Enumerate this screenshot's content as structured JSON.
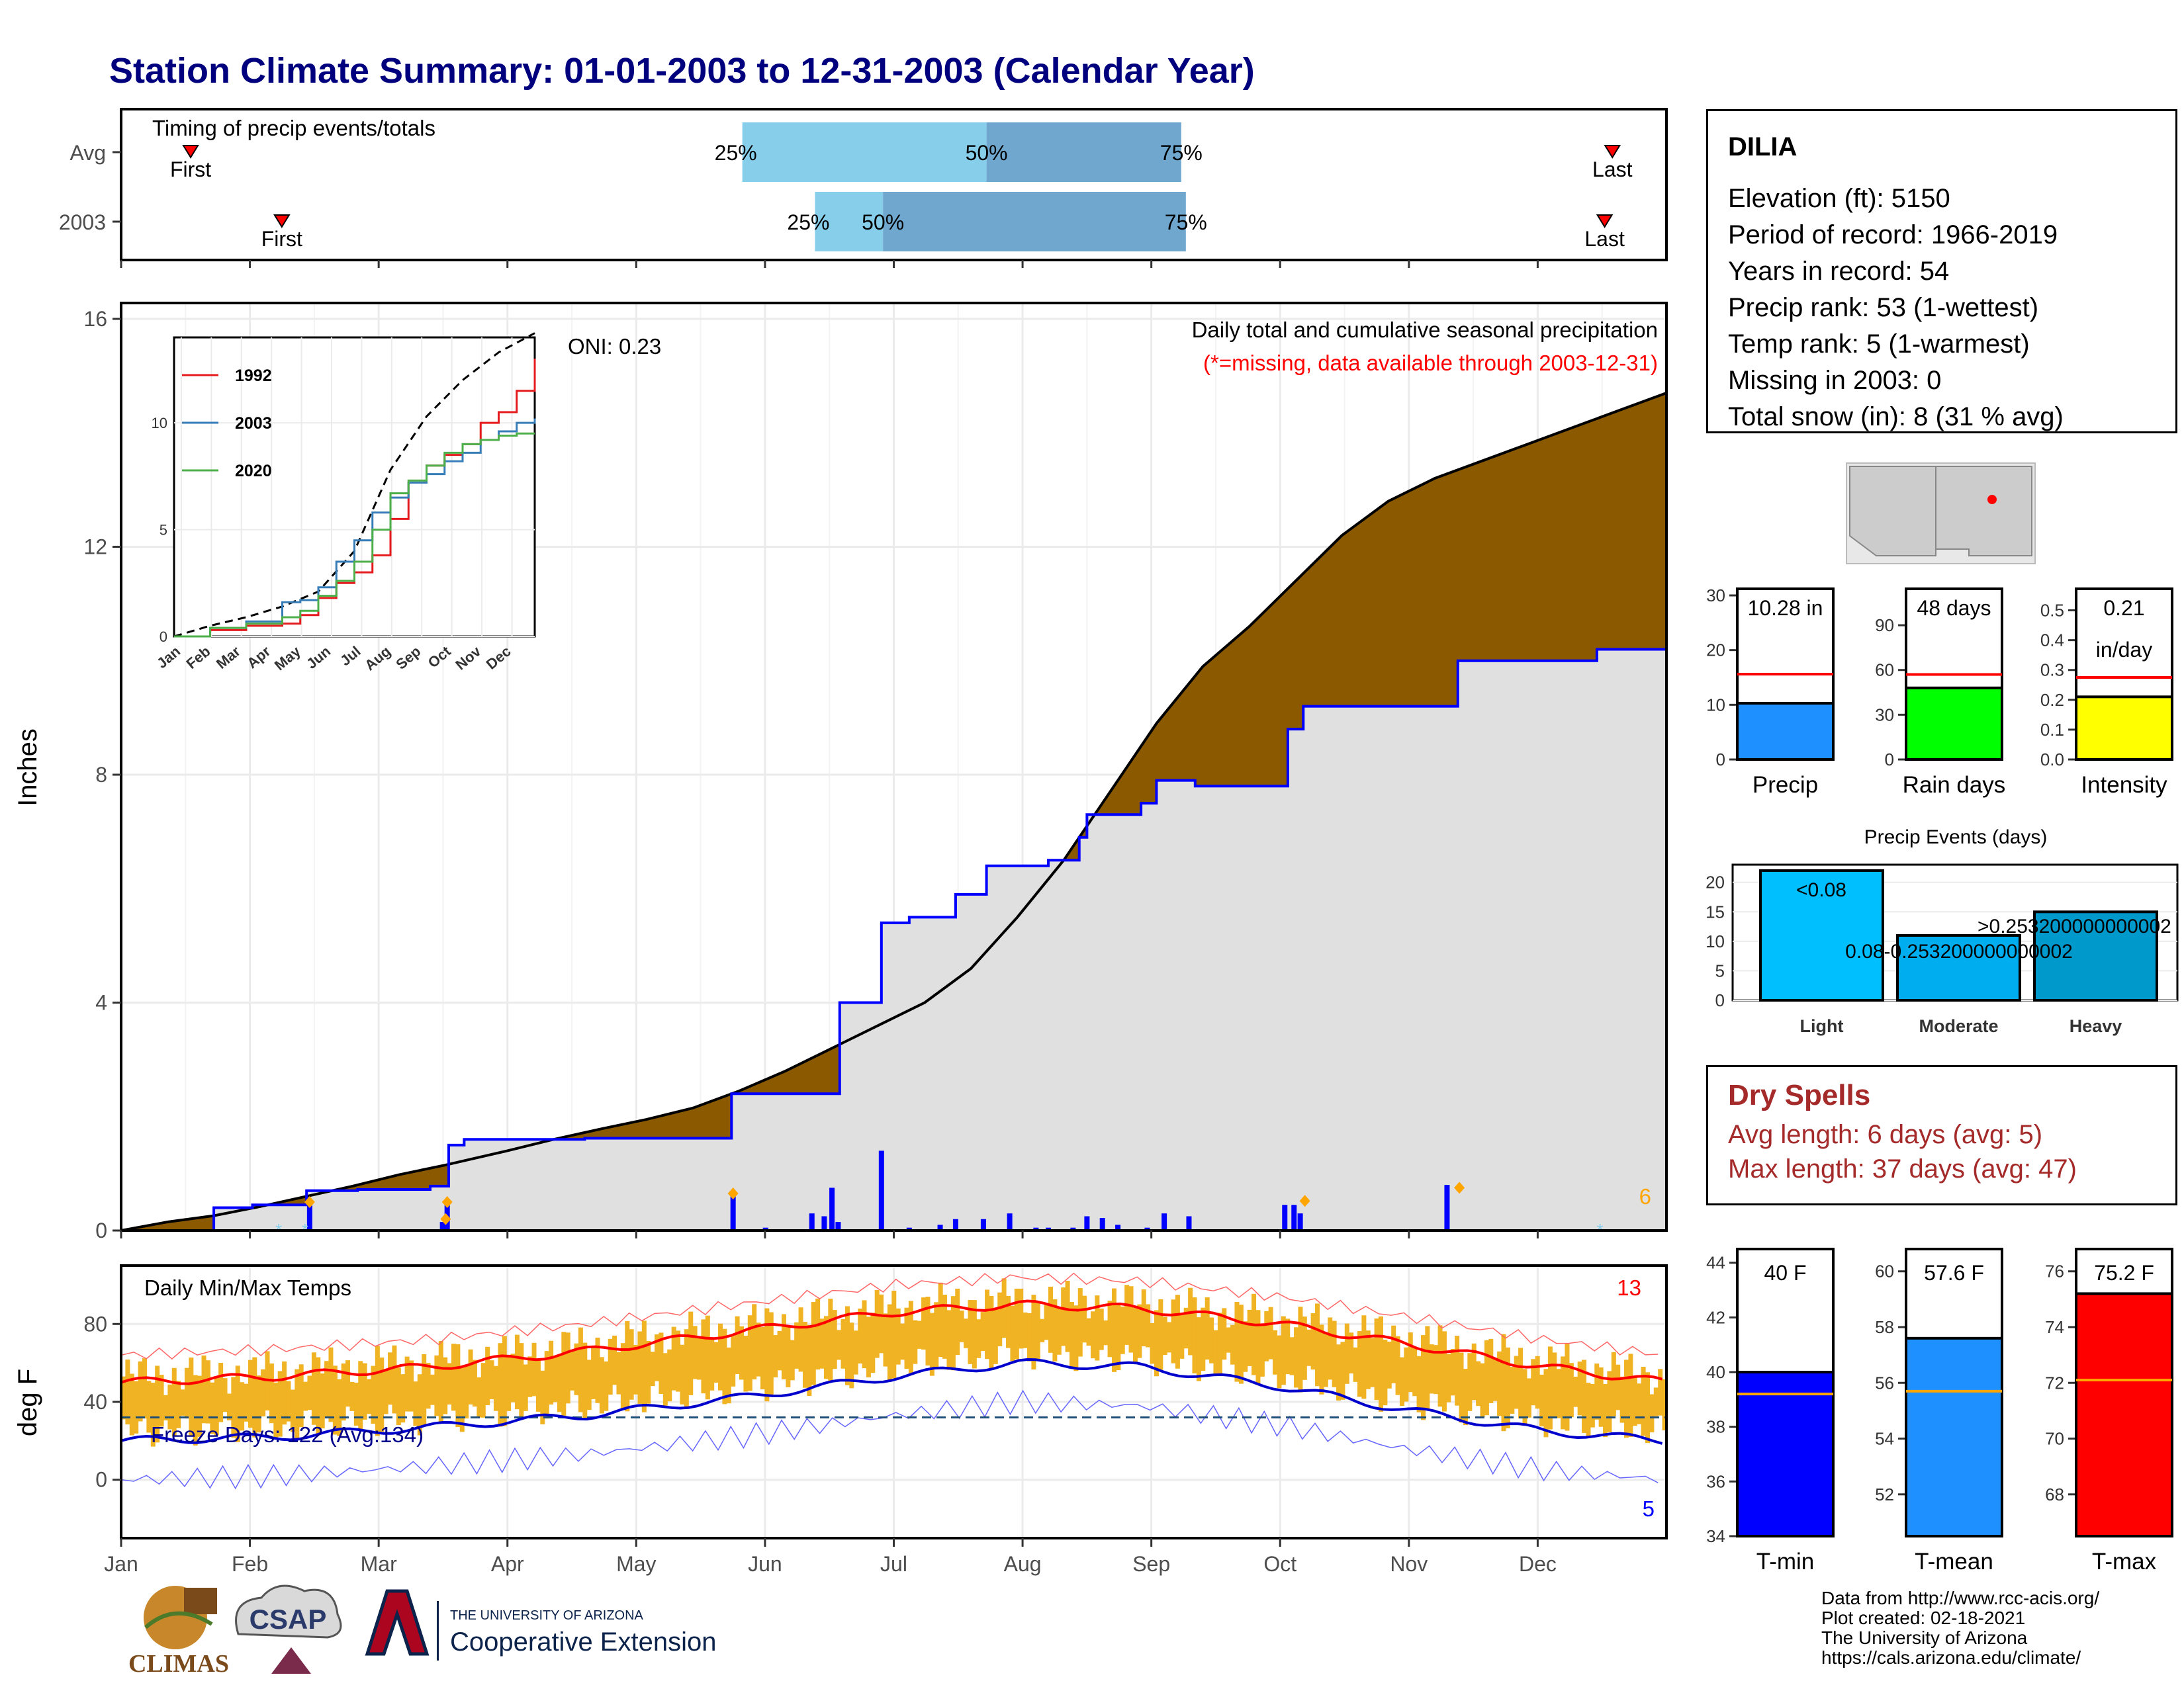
{
  "title": "Station Climate Summary: 01-01-2003 to 12-31-2003 (Calendar Year)",
  "timing": {
    "label": "Timing of precip events/totals",
    "rows": [
      {
        "name": "Avg",
        "first": 0.045,
        "last": 0.965,
        "p25": 0.402,
        "p50": 0.56,
        "p75": 0.686
      },
      {
        "name": "2003",
        "first": 0.104,
        "last": 0.96,
        "p25": 0.449,
        "p50": 0.493,
        "p75": 0.689
      }
    ],
    "first_label": "First",
    "last_label": "Last",
    "p25_label": "25%",
    "p50_label": "50%",
    "p75_label": "75%"
  },
  "precip_panel": {
    "ylabel": "Inches",
    "yticks": [
      "0",
      "4",
      "8",
      "12",
      "16"
    ],
    "ylim": [
      0,
      16
    ],
    "caption": "Daily total and cumulative seasonal precipitation",
    "caption2": "(*=missing, data available through 2003-12-31)",
    "oni": "ONI: 0.23",
    "corner_count": "6",
    "avg_cumulative": [
      [
        0,
        0
      ],
      [
        0.03,
        0.15
      ],
      [
        0.06,
        0.26
      ],
      [
        0.09,
        0.42
      ],
      [
        0.12,
        0.6
      ],
      [
        0.15,
        0.78
      ],
      [
        0.18,
        0.98
      ],
      [
        0.21,
        1.15
      ],
      [
        0.25,
        1.4
      ],
      [
        0.28,
        1.6
      ],
      [
        0.31,
        1.78
      ],
      [
        0.34,
        1.95
      ],
      [
        0.37,
        2.15
      ],
      [
        0.4,
        2.45
      ],
      [
        0.43,
        2.8
      ],
      [
        0.46,
        3.2
      ],
      [
        0.49,
        3.6
      ],
      [
        0.52,
        4.0
      ],
      [
        0.55,
        4.6
      ],
      [
        0.58,
        5.5
      ],
      [
        0.61,
        6.5
      ],
      [
        0.64,
        7.7
      ],
      [
        0.67,
        8.9
      ],
      [
        0.7,
        9.9
      ],
      [
        0.73,
        10.6
      ],
      [
        0.76,
        11.4
      ],
      [
        0.79,
        12.2
      ],
      [
        0.82,
        12.8
      ],
      [
        0.85,
        13.2
      ],
      [
        0.88,
        13.5
      ],
      [
        0.91,
        13.8
      ],
      [
        0.94,
        14.1
      ],
      [
        0.97,
        14.4
      ],
      [
        1.0,
        14.7
      ]
    ],
    "obs_cumulative": [
      [
        0,
        0
      ],
      [
        0.06,
        0.4
      ],
      [
        0.085,
        0.45
      ],
      [
        0.12,
        0.7
      ],
      [
        0.153,
        0.72
      ],
      [
        0.2,
        0.78
      ],
      [
        0.212,
        1.5
      ],
      [
        0.222,
        1.6
      ],
      [
        0.27,
        1.6
      ],
      [
        0.3,
        1.62
      ],
      [
        0.39,
        1.62
      ],
      [
        0.395,
        2.4
      ],
      [
        0.405,
        2.4
      ],
      [
        0.46,
        2.4
      ],
      [
        0.465,
        4.0
      ],
      [
        0.49,
        4.0
      ],
      [
        0.492,
        5.4
      ],
      [
        0.51,
        5.5
      ],
      [
        0.54,
        5.9
      ],
      [
        0.56,
        6.4
      ],
      [
        0.6,
        6.5
      ],
      [
        0.62,
        6.9
      ],
      [
        0.625,
        7.3
      ],
      [
        0.66,
        7.5
      ],
      [
        0.67,
        7.9
      ],
      [
        0.695,
        7.8
      ],
      [
        0.75,
        7.8
      ],
      [
        0.755,
        8.8
      ],
      [
        0.765,
        9.2
      ],
      [
        0.86,
        9.2
      ],
      [
        0.865,
        10.0
      ],
      [
        0.955,
        10.2
      ],
      [
        1.0,
        10.2
      ]
    ],
    "daily_bars": [
      [
        0.122,
        0.45
      ],
      [
        0.208,
        0.15
      ],
      [
        0.211,
        0.55
      ],
      [
        0.396,
        0.6
      ],
      [
        0.417,
        0.05
      ],
      [
        0.447,
        0.3
      ],
      [
        0.455,
        0.25
      ],
      [
        0.46,
        0.75
      ],
      [
        0.464,
        0.15
      ],
      [
        0.492,
        1.4
      ],
      [
        0.51,
        0.05
      ],
      [
        0.53,
        0.1
      ],
      [
        0.54,
        0.2
      ],
      [
        0.558,
        0.2
      ],
      [
        0.575,
        0.3
      ],
      [
        0.592,
        0.05
      ],
      [
        0.6,
        0.05
      ],
      [
        0.616,
        0.05
      ],
      [
        0.625,
        0.25
      ],
      [
        0.635,
        0.22
      ],
      [
        0.645,
        0.1
      ],
      [
        0.664,
        0.05
      ],
      [
        0.675,
        0.3
      ],
      [
        0.691,
        0.25
      ],
      [
        0.753,
        0.45
      ],
      [
        0.759,
        0.45
      ],
      [
        0.763,
        0.3
      ],
      [
        0.858,
        0.8
      ]
    ],
    "diamonds": [
      [
        0.122,
        0.5
      ],
      [
        0.21,
        0.2
      ],
      [
        0.211,
        0.5
      ],
      [
        0.396,
        0.65
      ],
      [
        0.766,
        0.52
      ],
      [
        0.866,
        0.75
      ]
    ],
    "snow_marks": [
      0.102,
      0.119,
      0.957
    ]
  },
  "temp_panel": {
    "ylabel": "deg F",
    "yticks": [
      "0",
      "40",
      "80"
    ],
    "ylim": [
      -30,
      110
    ],
    "label": "Daily Min/Max Temps",
    "freeze": "Freeze Days: 122 (Avg:134)",
    "max_count": "13",
    "min_count": "5",
    "freeze_line": 32,
    "avg_max": [
      [
        0,
        50
      ],
      [
        0.1,
        53
      ],
      [
        0.2,
        58
      ],
      [
        0.3,
        66
      ],
      [
        0.4,
        76
      ],
      [
        0.5,
        86
      ],
      [
        0.58,
        90
      ],
      [
        0.66,
        88
      ],
      [
        0.75,
        80
      ],
      [
        0.83,
        70
      ],
      [
        0.92,
        58
      ],
      [
        1.0,
        50
      ]
    ],
    "avg_min": [
      [
        0,
        20
      ],
      [
        0.1,
        22
      ],
      [
        0.2,
        27
      ],
      [
        0.3,
        33
      ],
      [
        0.4,
        42
      ],
      [
        0.5,
        53
      ],
      [
        0.58,
        60
      ],
      [
        0.66,
        58
      ],
      [
        0.75,
        48
      ],
      [
        0.83,
        36
      ],
      [
        0.92,
        25
      ],
      [
        1.0,
        20
      ]
    ]
  },
  "months": [
    "Jan",
    "Feb",
    "Mar",
    "Apr",
    "May",
    "Jun",
    "Jul",
    "Aug",
    "Sep",
    "Oct",
    "Nov",
    "Dec"
  ],
  "inset": {
    "ylim": [
      0,
      14
    ],
    "yticks": [
      "0",
      "5",
      "10"
    ],
    "series": [
      {
        "name": "1992",
        "color": "#e41a1c",
        "values": [
          [
            0,
            0
          ],
          [
            0.1,
            0.3
          ],
          [
            0.2,
            0.5
          ],
          [
            0.3,
            0.6
          ],
          [
            0.35,
            1.0
          ],
          [
            0.4,
            1.8
          ],
          [
            0.45,
            2.5
          ],
          [
            0.5,
            3.0
          ],
          [
            0.55,
            3.8
          ],
          [
            0.6,
            5.5
          ],
          [
            0.65,
            7.2
          ],
          [
            0.7,
            8.0
          ],
          [
            0.75,
            8.5
          ],
          [
            0.8,
            9.0
          ],
          [
            0.85,
            10.0
          ],
          [
            0.9,
            10.5
          ],
          [
            0.95,
            11.5
          ],
          [
            1.0,
            13.0
          ]
        ]
      },
      {
        "name": "2003",
        "color": "#377eb8",
        "values": [
          [
            0,
            0
          ],
          [
            0.1,
            0.4
          ],
          [
            0.2,
            0.7
          ],
          [
            0.3,
            1.6
          ],
          [
            0.35,
            1.7
          ],
          [
            0.4,
            2.3
          ],
          [
            0.45,
            3.5
          ],
          [
            0.5,
            4.5
          ],
          [
            0.55,
            5.8
          ],
          [
            0.6,
            6.5
          ],
          [
            0.65,
            7.2
          ],
          [
            0.7,
            7.6
          ],
          [
            0.75,
            8.2
          ],
          [
            0.8,
            8.6
          ],
          [
            0.85,
            9.2
          ],
          [
            0.9,
            9.6
          ],
          [
            0.95,
            10.0
          ],
          [
            1.0,
            10.2
          ]
        ]
      },
      {
        "name": "2020",
        "color": "#4daf4a",
        "values": [
          [
            0,
            0
          ],
          [
            0.1,
            0.4
          ],
          [
            0.2,
            0.6
          ],
          [
            0.3,
            0.9
          ],
          [
            0.35,
            1.2
          ],
          [
            0.4,
            1.9
          ],
          [
            0.45,
            2.6
          ],
          [
            0.5,
            3.5
          ],
          [
            0.55,
            5.0
          ],
          [
            0.6,
            6.7
          ],
          [
            0.65,
            7.3
          ],
          [
            0.7,
            8.0
          ],
          [
            0.75,
            8.6
          ],
          [
            0.8,
            9.0
          ],
          [
            0.85,
            9.2
          ],
          [
            0.9,
            9.4
          ],
          [
            0.95,
            9.5
          ],
          [
            1.0,
            9.5
          ]
        ]
      }
    ],
    "avg": [
      [
        0,
        0
      ],
      [
        0.1,
        0.5
      ],
      [
        0.2,
        0.9
      ],
      [
        0.3,
        1.4
      ],
      [
        0.4,
        2.1
      ],
      [
        0.5,
        4.0
      ],
      [
        0.6,
        7.8
      ],
      [
        0.7,
        10.3
      ],
      [
        0.8,
        12.0
      ],
      [
        0.9,
        13.3
      ],
      [
        1.0,
        14.2
      ]
    ],
    "months": [
      "Jan",
      "Feb",
      "Mar",
      "Apr",
      "May",
      "Jun",
      "Jul",
      "Aug",
      "Sep",
      "Oct",
      "Nov",
      "Dec"
    ]
  },
  "station": {
    "name": "DILIA",
    "lines": [
      "Elevation (ft): 5150",
      "Period of record: 1966-2019",
      "Years in record: 54",
      "Precip rank: 53 (1-wettest)",
      "Temp rank: 5 (1-warmest)",
      "Missing in 2003: 0",
      "Total snow (in): 8 (31 % avg)"
    ]
  },
  "summary_bars": [
    {
      "name": "Precip",
      "value": 10.28,
      "avg": 15.6,
      "ymax": 30,
      "yticks": [
        "0",
        "10",
        "20",
        "30"
      ],
      "label": "10.28 in",
      "label2": "",
      "color": "#1e90ff"
    },
    {
      "name": "Rain days",
      "value": 48,
      "avg": 57,
      "ymax": 110,
      "yticks": [
        "0",
        "30",
        "60",
        "90"
      ],
      "label": "48 days",
      "label2": "",
      "color": "#00ff00"
    },
    {
      "name": "Intensity",
      "value": 0.21,
      "avg": 0.275,
      "ymax": 0.55,
      "yticks": [
        "0.0",
        "0.1",
        "0.2",
        "0.3",
        "0.4",
        "0.5"
      ],
      "label": "0.21",
      "label2": "in/day",
      "color": "#ffff00"
    }
  ],
  "events": {
    "title": "Precip Events (days)",
    "ylim": [
      0,
      23
    ],
    "yticks": [
      "0",
      "5",
      "10",
      "15",
      "20"
    ],
    "categories": [
      "Light",
      "Moderate",
      "Heavy"
    ],
    "values": [
      22,
      11,
      15
    ],
    "labels": [
      "<0.08",
      "0.08-0.253200000000002",
      ">0.253200000000002"
    ]
  },
  "dry_spells": {
    "title": "Dry Spells",
    "avg": "Avg length: 6 days (avg: 5)",
    "max": "Max length: 37 days (avg: 47)"
  },
  "temp_bars": [
    {
      "name": "T-min",
      "value": 40,
      "avg": 39.2,
      "ylim": [
        34,
        44.5
      ],
      "yticks": [
        "34",
        "36",
        "38",
        "40",
        "42",
        "44"
      ],
      "label": "40 F",
      "color": "#0000ff"
    },
    {
      "name": "T-mean",
      "value": 57.6,
      "avg": 55.7,
      "ylim": [
        50.5,
        60.8
      ],
      "yticks": [
        "52",
        "54",
        "56",
        "58",
        "60"
      ],
      "label": "57.6 F",
      "color": "#1e90ff"
    },
    {
      "name": "T-max",
      "value": 75.2,
      "avg": 72.1,
      "ylim": [
        66.5,
        76.8
      ],
      "yticks": [
        "68",
        "70",
        "72",
        "74",
        "76"
      ],
      "label": "75.2 F",
      "color": "#ff0000"
    }
  ],
  "footer": {
    "lines": [
      "Data from http://www.rcc-acis.org/",
      "Plot created: 02-18-2021",
      "The University of Arizona",
      "https://cals.arizona.edu/climate/"
    ],
    "climas": "CLIMAS",
    "csap": "CSAP",
    "ua_small": "THE UNIVERSITY OF ARIZONA",
    "ua_big": "Cooperative Extension"
  }
}
